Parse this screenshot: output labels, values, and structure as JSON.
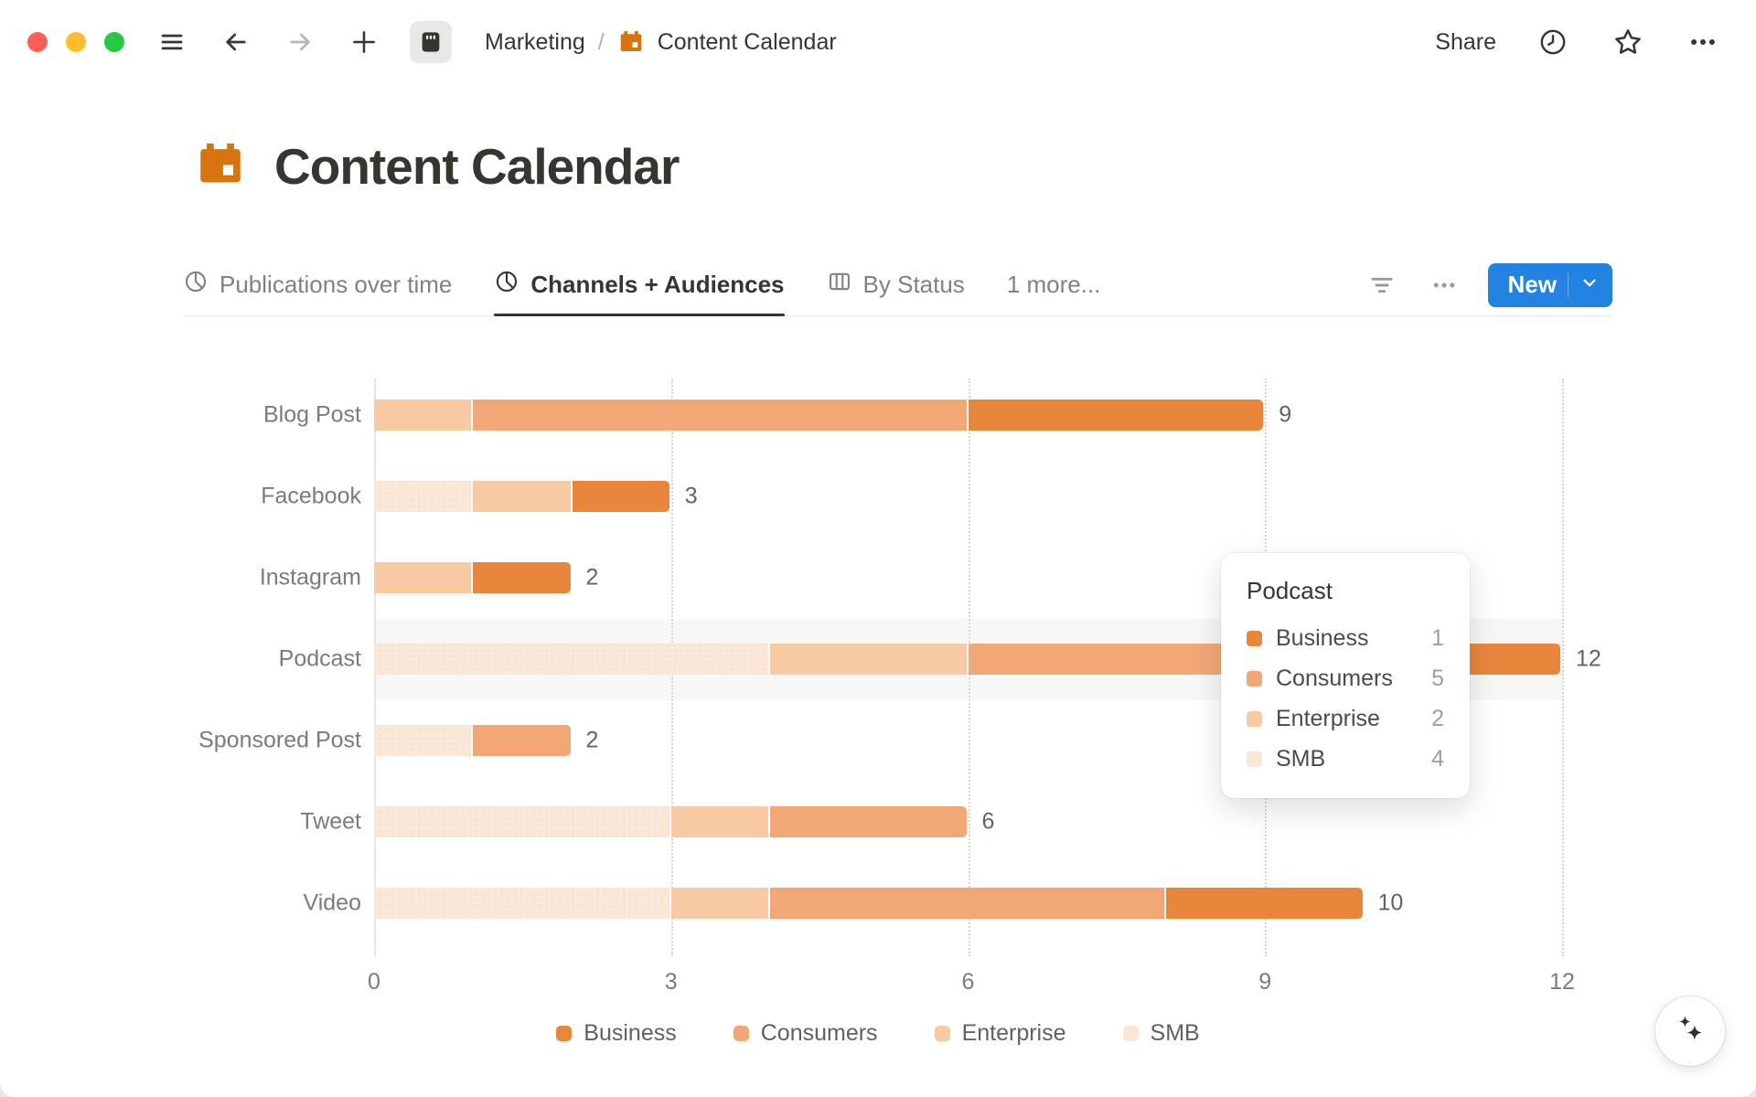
{
  "topbar": {
    "share_label": "Share",
    "icons": [
      "hamburger-menu",
      "back-arrow",
      "forward-arrow",
      "plus",
      "clock-history",
      "star-favorite",
      "more-ellipsis"
    ]
  },
  "breadcrumb": {
    "workspace": "Marketing",
    "separator": "/",
    "page": "Content Calendar"
  },
  "page": {
    "title": "Content Calendar",
    "icon": "calendar-icon",
    "icon_color": "#d9730d"
  },
  "tabs": [
    {
      "label": "Publications over time",
      "icon": "pie-chart-icon",
      "active": false
    },
    {
      "label": "Channels + Audiences",
      "icon": "pie-chart-icon",
      "active": true
    },
    {
      "label": "By Status",
      "icon": "board-columns-icon",
      "active": false
    }
  ],
  "more_tabs_label": "1 more...",
  "view_actions": {
    "new_button_label": "New",
    "new_button_color": "#2383e2"
  },
  "chart_data": {
    "type": "bar",
    "orientation": "horizontal_stacked",
    "categories": [
      "Blog Post",
      "Facebook",
      "Instagram",
      "Podcast",
      "Sponsored Post",
      "Tweet",
      "Video"
    ],
    "series": [
      {
        "name": "SMB",
        "color": "#fbe5d4",
        "textured": true,
        "values": [
          0,
          1,
          0,
          4,
          1,
          3,
          3
        ]
      },
      {
        "name": "Enterprise",
        "color": "#f7caa4",
        "textured": false,
        "values": [
          1,
          1,
          1,
          2,
          0,
          1,
          1
        ]
      },
      {
        "name": "Consumers",
        "color": "#f2a876",
        "textured": false,
        "values": [
          5,
          0,
          0,
          5,
          1,
          2,
          4
        ]
      },
      {
        "name": "Business",
        "color": "#e8873c",
        "textured": false,
        "values": [
          3,
          1,
          1,
          1,
          0,
          0,
          2
        ]
      }
    ],
    "totals": [
      9,
      3,
      2,
      12,
      2,
      6,
      10
    ],
    "value_labels": [
      "9",
      "3",
      "2",
      "12",
      "2",
      "6",
      "10"
    ],
    "x_ticks": [
      0,
      3,
      6,
      9,
      12
    ],
    "xlim": [
      0,
      12
    ],
    "grid": "dotted-vertical",
    "legend_order": [
      "Business",
      "Consumers",
      "Enterprise",
      "SMB"
    ],
    "legend_position": "bottom-center",
    "highlighted_category": "Podcast"
  },
  "tooltip": {
    "title": "Podcast",
    "rows": [
      {
        "label": "Business",
        "value": "1",
        "color": "#e8873c"
      },
      {
        "label": "Consumers",
        "value": "5",
        "color": "#f2a876"
      },
      {
        "label": "Enterprise",
        "value": "2",
        "color": "#f7caa4"
      },
      {
        "label": "SMB",
        "value": "4",
        "color": "#fbe5d4"
      }
    ]
  }
}
